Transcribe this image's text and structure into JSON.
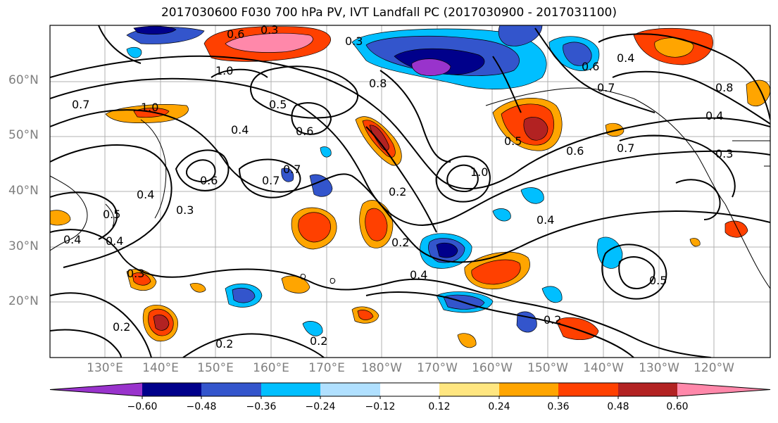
{
  "title": "2017030600 F030 700 hPa PV, IVT Landfall PC (2017030900 - 2017031100)",
  "lat_labels": [
    "60°N",
    "50°N",
    "40°N",
    "30°N",
    "20°N"
  ],
  "lon_labels": [
    "130°E",
    "140°E",
    "150°E",
    "160°E",
    "170°E",
    "180°W",
    "170°W",
    "160°W",
    "150°W",
    "140°W",
    "130°W",
    "120°W"
  ],
  "contour_labels": [
    "0.6",
    "0.3",
    "0.3",
    "1.0",
    "0.7",
    "1.0",
    "0.5",
    "0.4",
    "0.6",
    "0.7",
    "0.6",
    "0.7",
    "0.2",
    "0.4",
    "0.3",
    "0.4",
    "0.5",
    "0.4",
    "0.3",
    "0.2",
    "0.2",
    "0.2",
    "0.2",
    "0.4",
    "0.8",
    "0.6",
    "0.4",
    "0.7",
    "0.5",
    "0.6",
    "0.7",
    "0.3",
    "0.4",
    "0.5",
    "1.0",
    "0.2",
    "0.8",
    "0.4"
  ],
  "colorbar": {
    "ticks": [
      "−0.60",
      "−0.48",
      "−0.36",
      "−0.24",
      "−0.12",
      "0.12",
      "0.24",
      "0.36",
      "0.48",
      "0.60"
    ],
    "colors": [
      "#9933cc",
      "#00008b",
      "#3355cc",
      "#00bfff",
      "#b0e0ff",
      "#ffffff",
      "#ffe680",
      "#ffa500",
      "#ff4000",
      "#b22222",
      "#ff88aa"
    ]
  },
  "fill_colors": {
    "neg_deep": "#9933cc",
    "neg_dark": "#00008b",
    "neg_mid": "#3355cc",
    "neg_light": "#00bfff",
    "neg_pale": "#b0e0ff",
    "pos_pale": "#ffe680",
    "pos_mid": "#ffa500",
    "pos_strong": "#ff4000",
    "pos_dark": "#b22222",
    "pos_max": "#ff88aa"
  }
}
